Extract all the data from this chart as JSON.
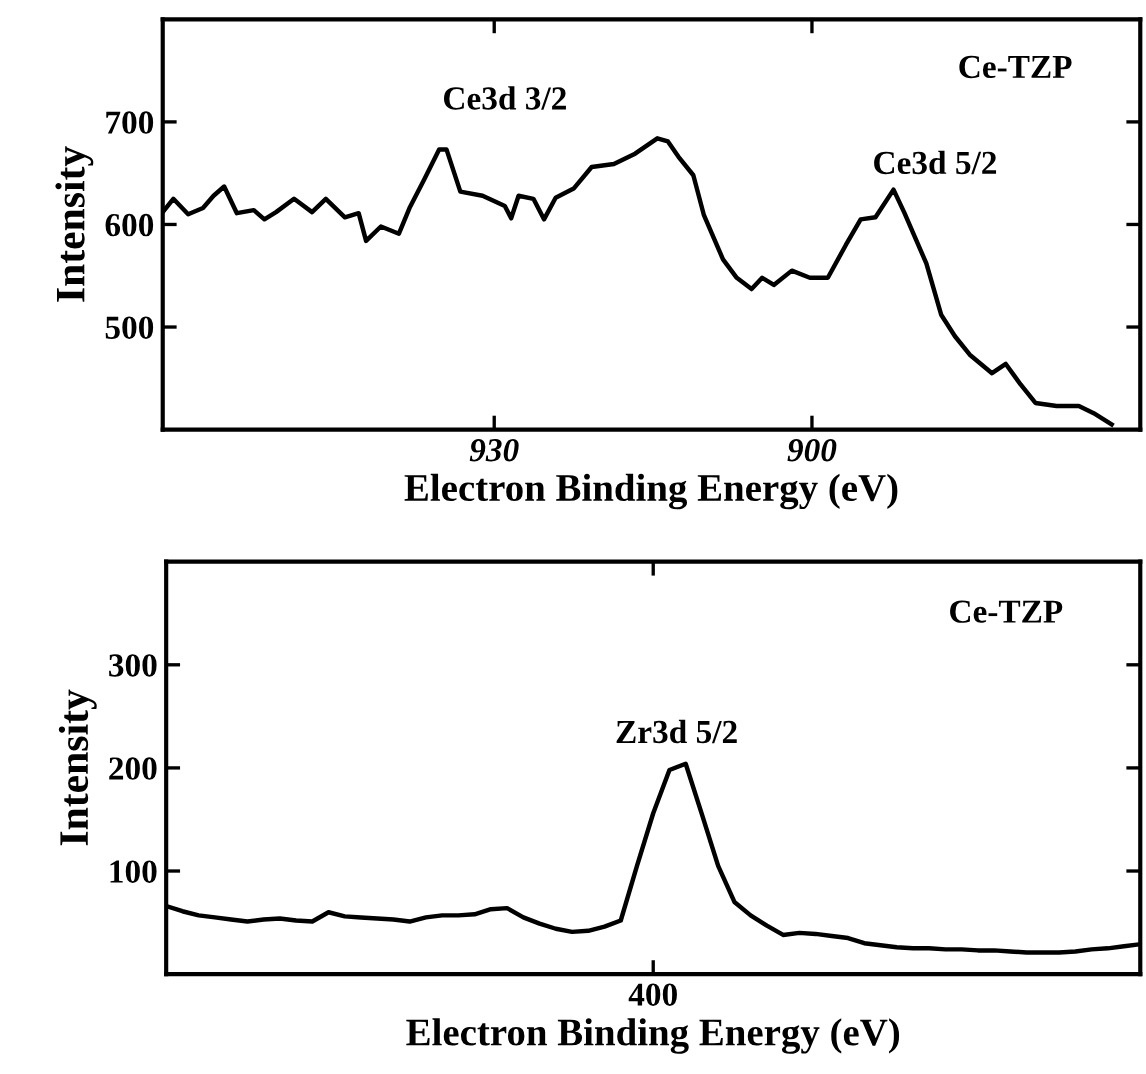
{
  "chart_data": [
    {
      "type": "line",
      "xlabel": "Electron Binding Energy (eV)",
      "ylabel": "Intensity",
      "color": "#000000",
      "x": [
        961.3,
        960.3,
        958.9,
        957.5,
        956.5,
        955.5,
        954.3,
        952.7,
        951.7,
        950.6,
        948.9,
        947.2,
        945.9,
        944.1,
        942.8,
        942.1,
        940.7,
        939.0,
        938.0,
        936.6,
        935.2,
        934.5,
        933.2,
        931.1,
        929.0,
        928.4,
        927.7,
        926.3,
        925.3,
        924.2,
        922.5,
        920.8,
        918.7,
        916.7,
        914.6,
        913.6,
        912.6,
        911.2,
        910.2,
        908.4,
        907.1,
        905.7,
        904.7,
        903.6,
        901.9,
        900.2,
        898.5,
        896.8,
        895.4,
        894.0,
        892.3,
        891.3,
        889.2,
        887.8,
        886.5,
        885.1,
        883.0,
        881.7,
        880.3,
        878.9,
        876.9,
        874.8,
        873.4,
        871.7
      ],
      "values": [
        612,
        625,
        610,
        616,
        628,
        637,
        611,
        614,
        605,
        612,
        625,
        612,
        625,
        607,
        611,
        584,
        598,
        591,
        616,
        644,
        673,
        673,
        632,
        628,
        618,
        606,
        628,
        625,
        605,
        626,
        635,
        656,
        659,
        669,
        684,
        681,
        666,
        648,
        609,
        566,
        548,
        537,
        548,
        541,
        555,
        548,
        548,
        580,
        605,
        607,
        634,
        612,
        562,
        512,
        491,
        473,
        455,
        464,
        444,
        426,
        423,
        423,
        416,
        405
      ],
      "xlim": [
        961.3,
        869
      ],
      "ylim": [
        400,
        800
      ],
      "xticks": [
        930,
        900
      ],
      "yticks": [
        500,
        600,
        700
      ],
      "annotations": [
        "Ce-TZP",
        "Ce3d 3/2",
        "Ce3d 5/2"
      ]
    },
    {
      "type": "line",
      "xlabel": "Electron Binding Energy (eV)",
      "ylabel": "Intensity",
      "color": "#000000",
      "categories": [
        null,
        null,
        null,
        null,
        null,
        null,
        null,
        null,
        null,
        null,
        null,
        null,
        null,
        null,
        null,
        null,
        null,
        null,
        null,
        null,
        null,
        null,
        null,
        null,
        null,
        null,
        null,
        null,
        null,
        null,
        "400",
        null,
        null,
        null,
        null,
        null,
        null,
        null,
        null,
        null,
        null,
        null,
        null,
        null,
        null,
        null,
        null,
        null,
        null,
        null,
        null,
        null,
        null,
        null,
        null,
        null,
        null,
        null,
        null,
        null,
        null
      ],
      "values": [
        66,
        61,
        57,
        55,
        53,
        51,
        53,
        54,
        52,
        51,
        60,
        56,
        55,
        54,
        53,
        51,
        55,
        57,
        57,
        58,
        63,
        64,
        55,
        49,
        44,
        41,
        42,
        46,
        52,
        105,
        156,
        198,
        204,
        155,
        105,
        70,
        57,
        47,
        38,
        40,
        39,
        37,
        35,
        30,
        28,
        26,
        25,
        25,
        24,
        24,
        23,
        23,
        22,
        21,
        21,
        21,
        22,
        24,
        25,
        27,
        29
      ],
      "ylim": [
        0,
        400
      ],
      "yticks": [
        100,
        200,
        300
      ],
      "annotations": [
        "Ce-TZP",
        "Zr3d 5/2"
      ]
    }
  ]
}
